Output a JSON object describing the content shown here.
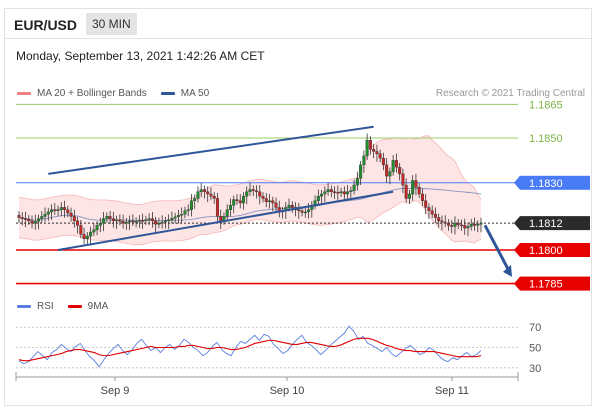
{
  "header": {
    "pair": "EUR/USD",
    "timeframe": "30 MIN",
    "datetime": "Monday, September 13, 2021 1:42:26 AM CET",
    "credit": "Research © 2021 Trading Central"
  },
  "legend_main": [
    {
      "label": "MA 20 + Bollinger Bands",
      "color": "#f08080"
    },
    {
      "label": "MA 50",
      "color": "#2e5597"
    }
  ],
  "legend_rsi": [
    {
      "label": "RSI",
      "color": "#5b7fe0"
    },
    {
      "label": "9MA",
      "color": "#e00000"
    }
  ],
  "chart_data": [
    {
      "type": "candlestick",
      "symbol": "EUR/USD",
      "interval": "30 MIN",
      "ylim": [
        1.1775,
        1.1875
      ],
      "x_ticks": [
        "Sep 9",
        "Sep 10",
        "Sep 11"
      ],
      "close_series": [
        1.18145,
        1.1814,
        1.18138,
        1.1813,
        1.1812,
        1.18128,
        1.1814,
        1.1815,
        1.1816,
        1.1817,
        1.1818,
        1.18175,
        1.1818,
        1.1819,
        1.1818,
        1.18165,
        1.1815,
        1.1813,
        1.1811,
        1.1807,
        1.1805,
        1.18062,
        1.1808,
        1.1809,
        1.1811,
        1.1812,
        1.1814,
        1.1815,
        1.1814,
        1.1813,
        1.18135,
        1.18128,
        1.1812,
        1.18125,
        1.1813,
        1.18125,
        1.18128,
        1.18132,
        1.1813,
        1.18135,
        1.1814,
        1.1813,
        1.18115,
        1.1812,
        1.18125,
        1.1813,
        1.18135,
        1.18142,
        1.18148,
        1.18155,
        1.1816,
        1.18175,
        1.1818,
        1.1822,
        1.1823,
        1.1826,
        1.1827,
        1.1826,
        1.1825,
        1.1824,
        1.1823,
        1.1815,
        1.1813,
        1.1815,
        1.1818,
        1.182,
        1.18225,
        1.1822,
        1.1821,
        1.1824,
        1.1826,
        1.1827,
        1.18265,
        1.1826,
        1.1824,
        1.1823,
        1.18215,
        1.1822,
        1.1821,
        1.1819,
        1.1817,
        1.18175,
        1.1819,
        1.182,
        1.1819,
        1.1818,
        1.18175,
        1.18168,
        1.1817,
        1.1818,
        1.182,
        1.1822,
        1.1824,
        1.1825,
        1.1826,
        1.1827,
        1.1826,
        1.18258,
        1.18255,
        1.1826,
        1.1825,
        1.1826,
        1.18265,
        1.1829,
        1.1832,
        1.1838,
        1.1842,
        1.1849,
        1.1845,
        1.1844,
        1.1843,
        1.1841,
        1.1838,
        1.1833,
        1.1835,
        1.184,
        1.1837,
        1.1834,
        1.1829,
        1.1823,
        1.1825,
        1.1831,
        1.1828,
        1.1825,
        1.1822,
        1.1819,
        1.18175,
        1.1816,
        1.18145,
        1.1813,
        1.18125,
        1.1812,
        1.1811,
        1.18105,
        1.1812,
        1.18112,
        1.1811,
        1.18098,
        1.18105,
        1.18115,
        1.1811,
        1.18115,
        1.1812
      ],
      "levels": [
        {
          "value": 1.1865,
          "label": "1.1865",
          "type": "resistance",
          "color": "#9ccc65"
        },
        {
          "value": 1.185,
          "label": "1.1850",
          "type": "resistance",
          "color": "#9ccc65"
        },
        {
          "value": 1.183,
          "label": "1.1830",
          "type": "pivot",
          "color": "#4a7bf7"
        },
        {
          "value": 1.1812,
          "label": "1.1812",
          "type": "last",
          "color": "#2b2b2b"
        },
        {
          "value": 1.18,
          "label": "1.1800",
          "type": "support",
          "color": "#e60000"
        },
        {
          "value": 1.1785,
          "label": "1.1785",
          "type": "support",
          "color": "#e60000"
        }
      ],
      "indicators": [
        "MA 20 + Bollinger Bands",
        "MA 50"
      ],
      "annotations": [
        "ascending channel",
        "bearish target arrow"
      ]
    },
    {
      "type": "line",
      "indicator": "RSI",
      "series": [
        {
          "name": "RSI",
          "values": [
            37,
            34,
            36,
            41,
            46,
            42,
            38,
            45,
            48,
            53,
            49,
            46,
            51,
            54,
            47,
            41,
            37,
            31,
            38,
            44,
            49,
            53,
            47,
            43,
            48,
            54,
            58,
            52,
            47,
            50,
            45,
            50,
            53,
            48,
            52,
            58,
            55,
            50,
            47,
            42,
            45,
            51,
            55,
            48,
            44,
            42,
            50,
            56,
            54,
            58,
            62,
            57,
            63,
            61,
            53,
            49,
            44,
            47,
            53,
            58,
            62,
            55,
            52,
            48,
            43,
            47,
            52,
            56,
            60,
            64,
            71,
            66,
            58,
            61,
            54,
            52,
            49,
            46,
            50,
            44,
            41,
            45,
            49,
            52,
            48,
            43,
            45,
            50,
            47,
            42,
            38,
            36,
            40,
            38,
            42,
            45,
            41,
            43,
            47
          ]
        },
        {
          "name": "9MA",
          "values": [
            38,
            37,
            37,
            38,
            39,
            40,
            41,
            42,
            43,
            44,
            46,
            47,
            48,
            48,
            47,
            46,
            45,
            43,
            42,
            42,
            43,
            44,
            45,
            46,
            47,
            48,
            49,
            50,
            51,
            50,
            50,
            50,
            50,
            50,
            51,
            51,
            52,
            52,
            51,
            50,
            49,
            49,
            50,
            50,
            49,
            48,
            48,
            49,
            50,
            52,
            54,
            55,
            56,
            57,
            57,
            56,
            55,
            54,
            53,
            53,
            54,
            55,
            55,
            54,
            53,
            52,
            51,
            51,
            52,
            54,
            56,
            58,
            59,
            59,
            59,
            58,
            56,
            54,
            52,
            51,
            49,
            48,
            47,
            47,
            46,
            46,
            46,
            46,
            46,
            45,
            44,
            43,
            42,
            41,
            41,
            41,
            41,
            41,
            42
          ]
        }
      ],
      "ylim": [
        20,
        80
      ],
      "y_ticks": [
        "70",
        "50",
        "30"
      ]
    }
  ]
}
